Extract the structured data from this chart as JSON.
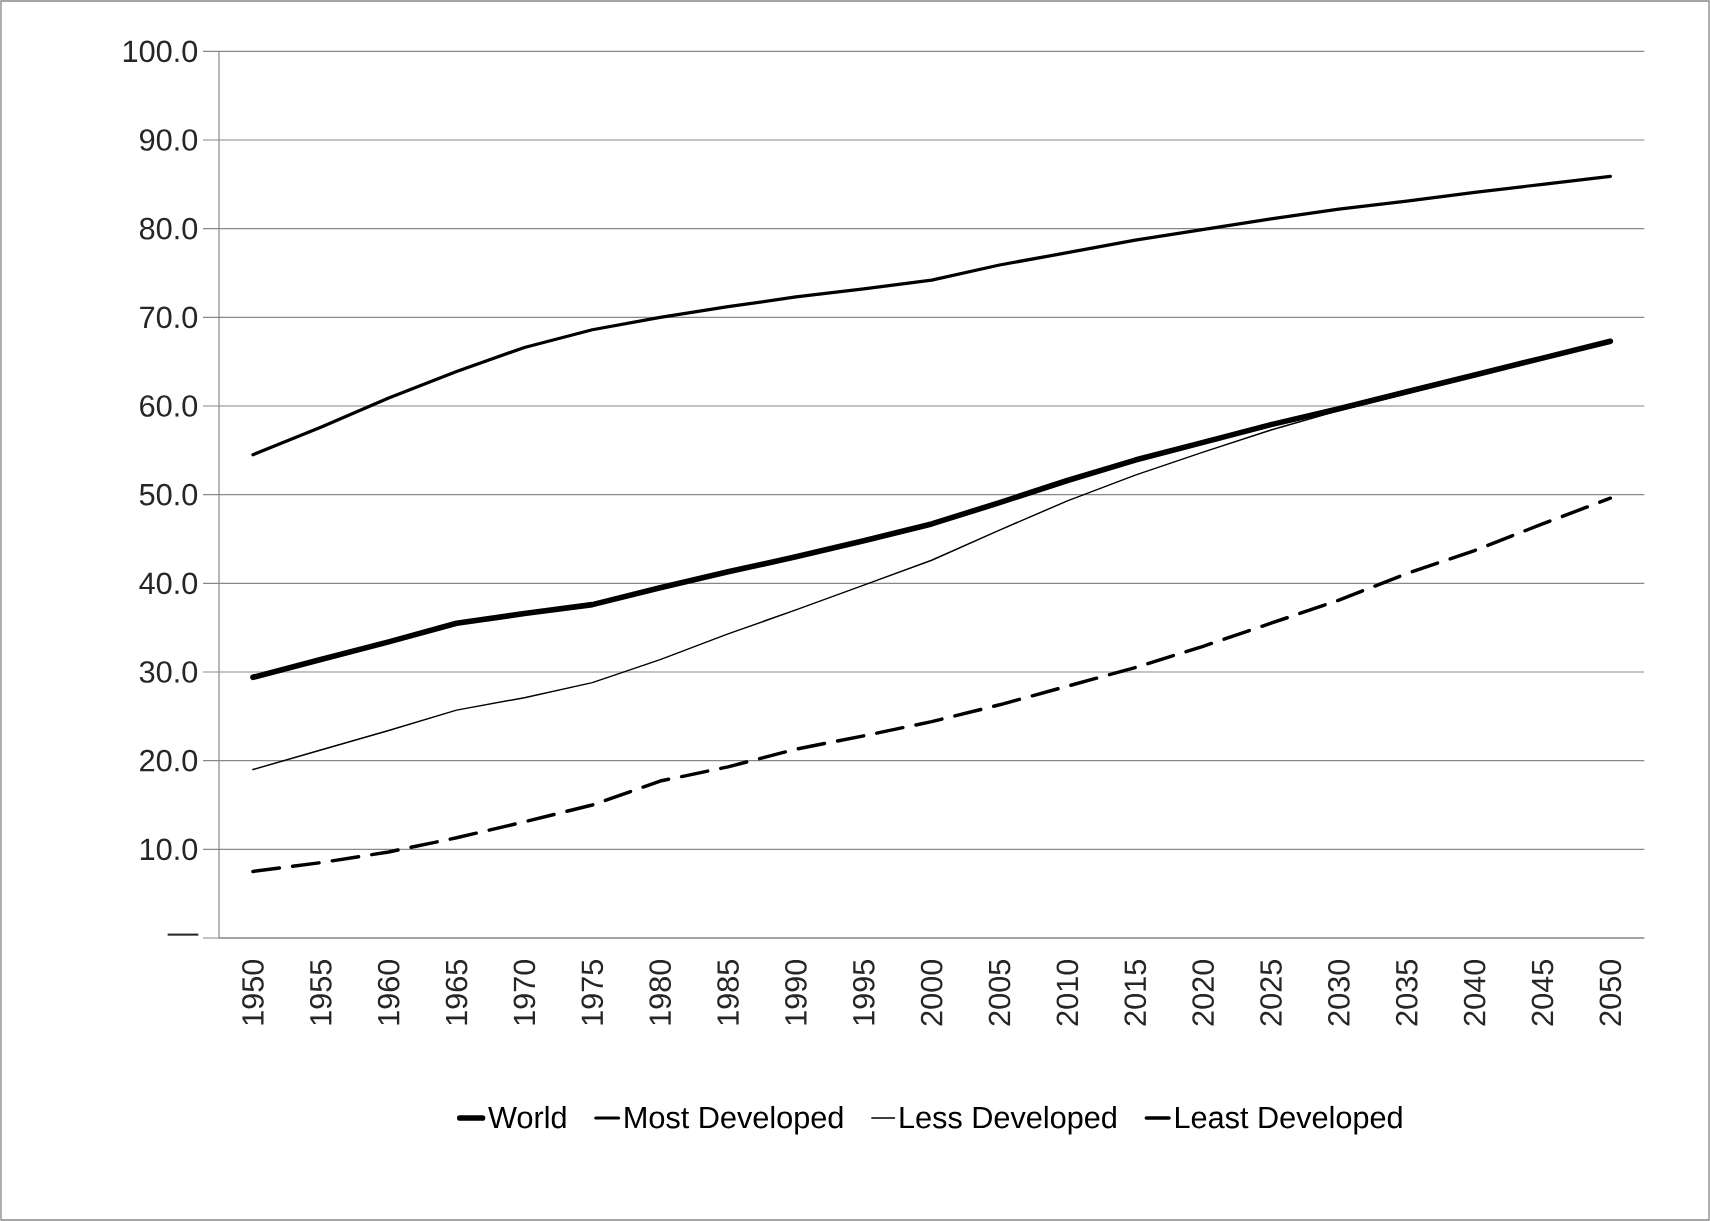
{
  "chart_data": {
    "type": "line",
    "categories": [
      "1950",
      "1955",
      "1960",
      "1965",
      "1970",
      "1975",
      "1980",
      "1985",
      "1990",
      "1995",
      "2000",
      "2005",
      "2010",
      "2015",
      "2020",
      "2025",
      "2030",
      "2035",
      "2040",
      "2045",
      "2050"
    ],
    "series": [
      {
        "name": "World",
        "color": "#000000",
        "line_style": "solid",
        "values": [
          29.4,
          31.4,
          33.4,
          35.5,
          36.6,
          37.6,
          39.5,
          41.3,
          43.0,
          44.8,
          46.7,
          49.1,
          51.6,
          53.9,
          55.9,
          57.9,
          59.7,
          61.6,
          63.5,
          65.4,
          67.3
        ]
      },
      {
        "name": "Most Developed",
        "color": "#000000",
        "line_style": "solid",
        "values": [
          54.5,
          57.6,
          60.9,
          63.9,
          66.6,
          68.6,
          70.0,
          71.2,
          72.3,
          73.2,
          74.2,
          75.9,
          77.3,
          78.7,
          79.9,
          81.1,
          82.2,
          83.1,
          84.1,
          85.0,
          85.9
        ]
      },
      {
        "name": "Less Developed",
        "color": "#000000",
        "line_style": "solid",
        "values": [
          19.0,
          21.2,
          23.4,
          25.7,
          27.1,
          28.8,
          31.4,
          34.3,
          37.0,
          39.8,
          42.6,
          46.0,
          49.3,
          52.2,
          54.8,
          57.3,
          59.5,
          61.4,
          63.4,
          65.3,
          67.1
        ]
      },
      {
        "name": "Least Developed",
        "color": "#000000",
        "line_style": "dashed",
        "values": [
          7.5,
          8.5,
          9.7,
          11.3,
          13.1,
          15.0,
          17.7,
          19.3,
          21.3,
          22.8,
          24.4,
          26.3,
          28.4,
          30.5,
          32.9,
          35.5,
          38.1,
          41.1,
          43.7,
          46.7,
          49.6
        ]
      }
    ],
    "ylim": [
      0,
      100
    ],
    "yticks": [
      {
        "value": 0,
        "label": "—"
      },
      {
        "value": 10,
        "label": "10.0"
      },
      {
        "value": 20,
        "label": "20.0"
      },
      {
        "value": 30,
        "label": "30.0"
      },
      {
        "value": 40,
        "label": "40.0"
      },
      {
        "value": 50,
        "label": "50.0"
      },
      {
        "value": 60,
        "label": "60.0"
      },
      {
        "value": 70,
        "label": "70.0"
      },
      {
        "value": 80,
        "label": "80.0"
      },
      {
        "value": 90,
        "label": "90.0"
      },
      {
        "value": 100,
        "label": "100.0"
      }
    ],
    "grid": "y",
    "legend": "bottom",
    "marker": "none"
  }
}
